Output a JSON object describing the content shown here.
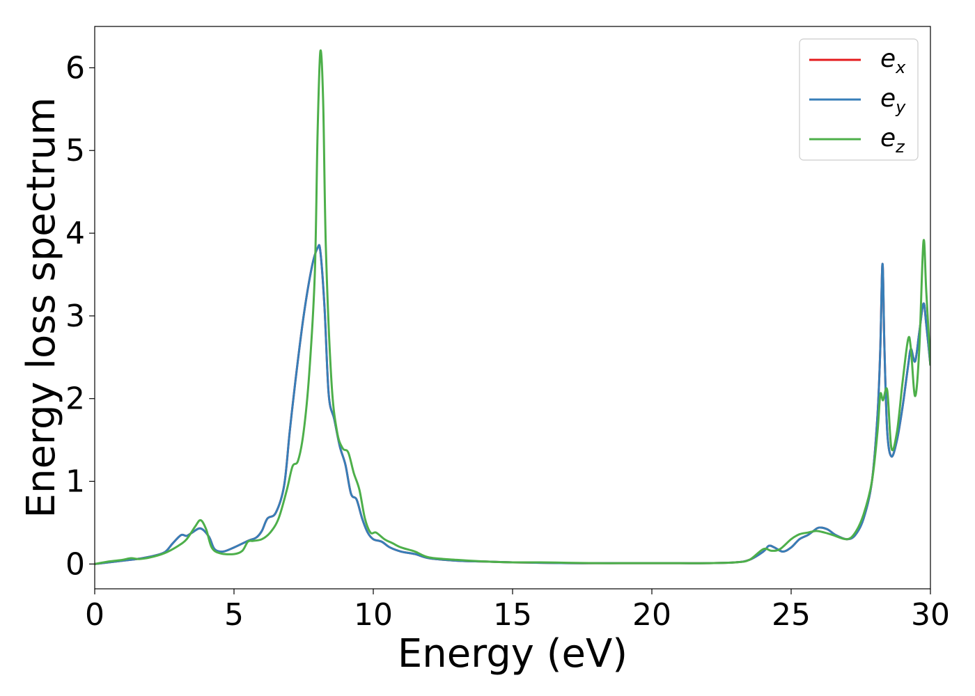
{
  "chart_data": {
    "type": "line",
    "xlabel": "Energy (eV)",
    "ylabel": "Energy loss spectrum",
    "xlim": [
      0,
      30
    ],
    "ylim": [
      -0.3,
      6.5
    ],
    "xticks": [
      "0",
      "5",
      "10",
      "15",
      "20",
      "25",
      "30"
    ],
    "yticks": [
      "0",
      "1",
      "2",
      "3",
      "4",
      "5",
      "6"
    ],
    "grid": false,
    "legend_position": "top-right",
    "series": [
      {
        "name": "e_x",
        "legend_main": "e",
        "legend_sub": "x",
        "color": "#e41a1c",
        "x": [
          0,
          0.5,
          1,
          1.5,
          2,
          2.5,
          2.8,
          3.1,
          3.3,
          3.5,
          3.8,
          4.1,
          4.3,
          4.6,
          5,
          5.5,
          5.8,
          6,
          6.2,
          6.5,
          6.8,
          7,
          7.2,
          7.5,
          7.8,
          8,
          8.1,
          8.25,
          8.4,
          8.6,
          8.8,
          9,
          9.2,
          9.4,
          9.6,
          9.8,
          10,
          10.3,
          10.6,
          11,
          11.5,
          12,
          13,
          14,
          15,
          16,
          17,
          18,
          19,
          20,
          21,
          22,
          23,
          23.5,
          24,
          24.2,
          24.4,
          24.7,
          25,
          25.3,
          25.6,
          25.8,
          26,
          26.3,
          26.6,
          27,
          27.3,
          27.6,
          27.9,
          28.1,
          28.2,
          28.28,
          28.35,
          28.45,
          28.6,
          28.8,
          29,
          29.2,
          29.3,
          29.45,
          29.6,
          29.75,
          29.85,
          30
        ],
        "y": [
          0,
          0.02,
          0.04,
          0.06,
          0.09,
          0.14,
          0.25,
          0.35,
          0.34,
          0.38,
          0.43,
          0.33,
          0.18,
          0.15,
          0.2,
          0.28,
          0.32,
          0.4,
          0.55,
          0.62,
          0.95,
          1.6,
          2.2,
          3.0,
          3.6,
          3.82,
          3.78,
          3.1,
          2.05,
          1.75,
          1.42,
          1.2,
          0.85,
          0.78,
          0.55,
          0.38,
          0.3,
          0.27,
          0.2,
          0.15,
          0.12,
          0.07,
          0.04,
          0.03,
          0.02,
          0.015,
          0.01,
          0.01,
          0.01,
          0.01,
          0.01,
          0.01,
          0.02,
          0.05,
          0.15,
          0.22,
          0.2,
          0.15,
          0.2,
          0.3,
          0.35,
          0.4,
          0.44,
          0.42,
          0.35,
          0.3,
          0.35,
          0.55,
          1.0,
          1.8,
          2.6,
          3.63,
          2.6,
          1.6,
          1.3,
          1.5,
          1.9,
          2.4,
          2.6,
          2.45,
          2.8,
          3.15,
          2.9,
          2.4
        ]
      },
      {
        "name": "e_y",
        "legend_main": "e",
        "legend_sub": "y",
        "color": "#377eb8",
        "x": [
          0,
          0.5,
          1,
          1.5,
          2,
          2.5,
          2.8,
          3.1,
          3.3,
          3.5,
          3.8,
          4.1,
          4.3,
          4.6,
          5,
          5.5,
          5.8,
          6,
          6.2,
          6.5,
          6.8,
          7,
          7.2,
          7.5,
          7.8,
          8,
          8.1,
          8.25,
          8.4,
          8.6,
          8.8,
          9,
          9.2,
          9.4,
          9.6,
          9.8,
          10,
          10.3,
          10.6,
          11,
          11.5,
          12,
          13,
          14,
          15,
          16,
          17,
          18,
          19,
          20,
          21,
          22,
          23,
          23.5,
          24,
          24.2,
          24.4,
          24.7,
          25,
          25.3,
          25.6,
          25.8,
          26,
          26.3,
          26.6,
          27,
          27.3,
          27.6,
          27.9,
          28.1,
          28.2,
          28.28,
          28.35,
          28.45,
          28.6,
          28.8,
          29,
          29.2,
          29.3,
          29.45,
          29.6,
          29.75,
          29.85,
          30
        ],
        "y": [
          0,
          0.02,
          0.04,
          0.06,
          0.09,
          0.14,
          0.25,
          0.35,
          0.34,
          0.38,
          0.43,
          0.33,
          0.18,
          0.15,
          0.2,
          0.28,
          0.32,
          0.4,
          0.55,
          0.62,
          0.95,
          1.6,
          2.2,
          3.0,
          3.6,
          3.82,
          3.78,
          3.1,
          2.05,
          1.75,
          1.42,
          1.2,
          0.85,
          0.78,
          0.55,
          0.38,
          0.3,
          0.27,
          0.2,
          0.15,
          0.12,
          0.07,
          0.04,
          0.03,
          0.02,
          0.015,
          0.01,
          0.01,
          0.01,
          0.01,
          0.01,
          0.01,
          0.02,
          0.05,
          0.15,
          0.22,
          0.2,
          0.15,
          0.2,
          0.3,
          0.35,
          0.4,
          0.44,
          0.42,
          0.35,
          0.3,
          0.35,
          0.55,
          1.0,
          1.8,
          2.6,
          3.63,
          2.6,
          1.6,
          1.3,
          1.5,
          1.9,
          2.4,
          2.6,
          2.45,
          2.8,
          3.15,
          2.9,
          2.4
        ]
      },
      {
        "name": "e_z",
        "legend_main": "e",
        "legend_sub": "z",
        "color": "#4daf4a",
        "x": [
          0,
          0.5,
          1,
          1.3,
          1.6,
          2,
          2.5,
          3,
          3.3,
          3.6,
          3.8,
          4,
          4.2,
          4.5,
          5,
          5.3,
          5.5,
          5.7,
          6,
          6.3,
          6.6,
          6.9,
          7.1,
          7.3,
          7.5,
          7.7,
          7.9,
          8.0,
          8.1,
          8.2,
          8.3,
          8.5,
          8.7,
          8.9,
          9.1,
          9.3,
          9.5,
          9.7,
          9.9,
          10.1,
          10.4,
          10.7,
          11,
          11.5,
          12,
          13,
          14,
          15,
          16,
          17,
          18,
          19,
          20,
          21,
          22,
          23,
          23.5,
          24,
          24.3,
          24.6,
          25,
          25.3,
          25.6,
          25.9,
          26.2,
          26.5,
          27,
          27.3,
          27.6,
          27.9,
          28.1,
          28.2,
          28.3,
          28.45,
          28.6,
          28.8,
          29,
          29.2,
          29.3,
          29.45,
          29.6,
          29.75,
          29.85,
          30
        ],
        "y": [
          0,
          0.03,
          0.05,
          0.07,
          0.06,
          0.08,
          0.13,
          0.22,
          0.3,
          0.45,
          0.53,
          0.42,
          0.2,
          0.13,
          0.12,
          0.16,
          0.27,
          0.28,
          0.3,
          0.38,
          0.55,
          0.9,
          1.18,
          1.25,
          1.6,
          2.3,
          3.5,
          5.2,
          6.2,
          5.6,
          3.8,
          2.2,
          1.6,
          1.4,
          1.35,
          1.1,
          0.9,
          0.55,
          0.38,
          0.38,
          0.3,
          0.25,
          0.2,
          0.15,
          0.08,
          0.05,
          0.03,
          0.02,
          0.02,
          0.015,
          0.01,
          0.01,
          0.01,
          0.01,
          0.01,
          0.02,
          0.05,
          0.18,
          0.16,
          0.18,
          0.3,
          0.36,
          0.38,
          0.4,
          0.38,
          0.35,
          0.3,
          0.38,
          0.6,
          1.0,
          1.6,
          2.05,
          1.98,
          2.1,
          1.4,
          1.6,
          2.2,
          2.72,
          2.6,
          2.03,
          2.6,
          3.9,
          3.3,
          2.4
        ]
      }
    ]
  }
}
